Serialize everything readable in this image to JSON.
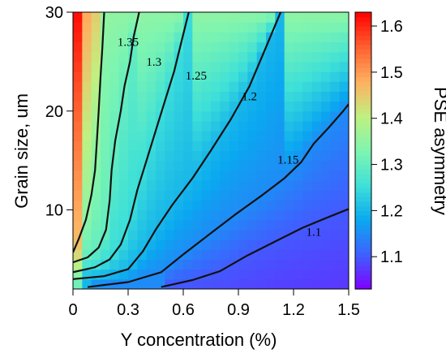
{
  "chart_data": {
    "type": "heatmap",
    "subtype": "filled-contour",
    "xlabel": "Y concentration (%)",
    "ylabel": "Grain size, um",
    "colorbar_label": "PSE asymmetry",
    "xlim": [
      0,
      1.5
    ],
    "ylim": [
      2,
      30
    ],
    "x_ticks": [
      0,
      0.3,
      0.6,
      0.9,
      1.2,
      1.5
    ],
    "x_tick_labels": [
      "0",
      "0.3",
      "0.6",
      "0.9",
      "1.2",
      "1.5"
    ],
    "y_ticks": [
      10,
      20,
      30
    ],
    "y_tick_labels": [
      "10",
      "20",
      "30"
    ],
    "colorbar_range": [
      1.03,
      1.63
    ],
    "colorbar_ticks": [
      1.1,
      1.2,
      1.3,
      1.4,
      1.5,
      1.6
    ],
    "colorbar_tick_labels": [
      "1.1",
      "1.2",
      "1.3",
      "1.4",
      "1.5",
      "1.6"
    ],
    "colormap": [
      "#7f00ff",
      "#3f60ff",
      "#0aa8f0",
      "#3ee0d8",
      "#7ef5b0",
      "#c0f080",
      "#ffb060",
      "#ff6030",
      "#ff0000"
    ],
    "grid": false,
    "contours": [
      {
        "level": "1.35",
        "points": [
          [
            0,
            5.7
          ],
          [
            0.03,
            7
          ],
          [
            0.07,
            9
          ],
          [
            0.1,
            11.5
          ],
          [
            0.12,
            14
          ],
          [
            0.13,
            17
          ],
          [
            0.14,
            20
          ],
          [
            0.15,
            23.5
          ],
          [
            0.16,
            26.5
          ],
          [
            0.17,
            30
          ]
        ],
        "label_at": [
          0.3,
          27.0
        ]
      },
      {
        "level": "1.3",
        "points": [
          [
            0,
            4.7
          ],
          [
            0.08,
            5.2
          ],
          [
            0.14,
            6.2
          ],
          [
            0.18,
            8
          ],
          [
            0.2,
            11
          ],
          [
            0.21,
            14
          ],
          [
            0.23,
            17
          ],
          [
            0.26,
            20
          ],
          [
            0.28,
            22.5
          ],
          [
            0.31,
            25
          ],
          [
            0.33,
            27.5
          ],
          [
            0.36,
            30
          ]
        ],
        "label_at": [
          0.44,
          25.0
        ]
      },
      {
        "level": "1.25",
        "points": [
          [
            0,
            3.7
          ],
          [
            0.12,
            4.2
          ],
          [
            0.2,
            5
          ],
          [
            0.26,
            6.5
          ],
          [
            0.31,
            9
          ],
          [
            0.35,
            12
          ],
          [
            0.4,
            15
          ],
          [
            0.45,
            18
          ],
          [
            0.5,
            21
          ],
          [
            0.55,
            24
          ],
          [
            0.59,
            27
          ],
          [
            0.63,
            30
          ]
        ],
        "label_at": [
          0.67,
          23.6
        ]
      },
      {
        "level": "1.2",
        "points": [
          [
            0,
            3
          ],
          [
            0.17,
            3.3
          ],
          [
            0.3,
            4
          ],
          [
            0.38,
            5.8
          ],
          [
            0.45,
            8
          ],
          [
            0.54,
            10.5
          ],
          [
            0.65,
            13.2
          ],
          [
            0.75,
            16
          ],
          [
            0.86,
            19.2
          ],
          [
            0.96,
            22.5
          ],
          [
            1.04,
            26
          ],
          [
            1.13,
            30
          ]
        ],
        "label_at": [
          0.96,
          21.5
        ]
      },
      {
        "level": "1.15",
        "points": [
          [
            0.08,
            2.2
          ],
          [
            0.3,
            2.7
          ],
          [
            0.48,
            3.7
          ],
          [
            0.6,
            5.5
          ],
          [
            0.74,
            7.5
          ],
          [
            0.88,
            9.5
          ],
          [
            1.03,
            11.5
          ],
          [
            1.15,
            13.2
          ],
          [
            1.24,
            14.8
          ],
          [
            1.31,
            16.7
          ],
          [
            1.39,
            18.3
          ],
          [
            1.47,
            20
          ],
          [
            1.5,
            20.7
          ]
        ],
        "label_at": [
          1.17,
          15.1
        ]
      },
      {
        "level": "1.1",
        "points": [
          [
            0.48,
            2.2
          ],
          [
            0.65,
            2.9
          ],
          [
            0.8,
            3.8
          ],
          [
            0.95,
            5.4
          ],
          [
            1.1,
            6.8
          ],
          [
            1.25,
            8.2
          ],
          [
            1.38,
            9.2
          ],
          [
            1.5,
            10.1
          ]
        ],
        "label_at": [
          1.31,
          7.8
        ]
      }
    ]
  }
}
